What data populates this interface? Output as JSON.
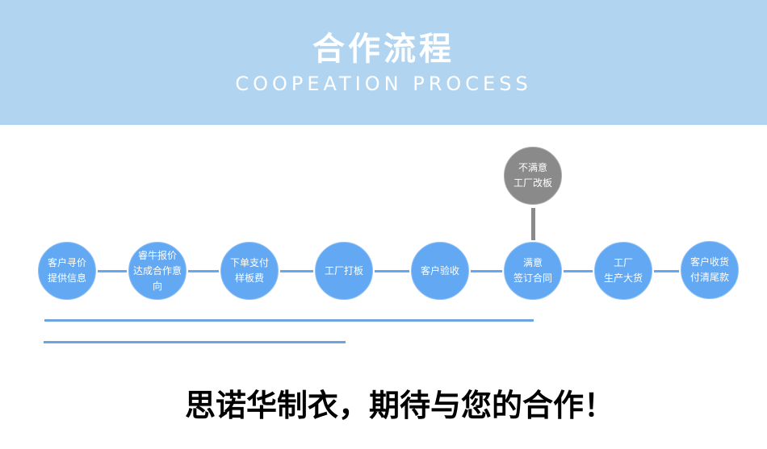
{
  "header": {
    "title": "合作流程",
    "subtitle": "COOPEATION PROCESS"
  },
  "steps": [
    {
      "line1": "客户寻价",
      "line2": "提供信息"
    },
    {
      "line1": "睿牛报价",
      "line2": "达成合作意向"
    },
    {
      "line1": "下单支付",
      "line2": "样板费"
    },
    {
      "line1": "工厂打板",
      "line2": ""
    },
    {
      "line1": "客户验收",
      "line2": ""
    },
    {
      "line1": "满意",
      "line2": "签订合同"
    },
    {
      "line1": "工厂",
      "line2": "生产大货"
    },
    {
      "line1": "客户收货",
      "line2": "付清尾款"
    }
  ],
  "branch": {
    "line1": "不满意",
    "line2": "工厂改板"
  },
  "footer": {
    "slogan": "思诺华制衣，期待与您的合作！"
  }
}
